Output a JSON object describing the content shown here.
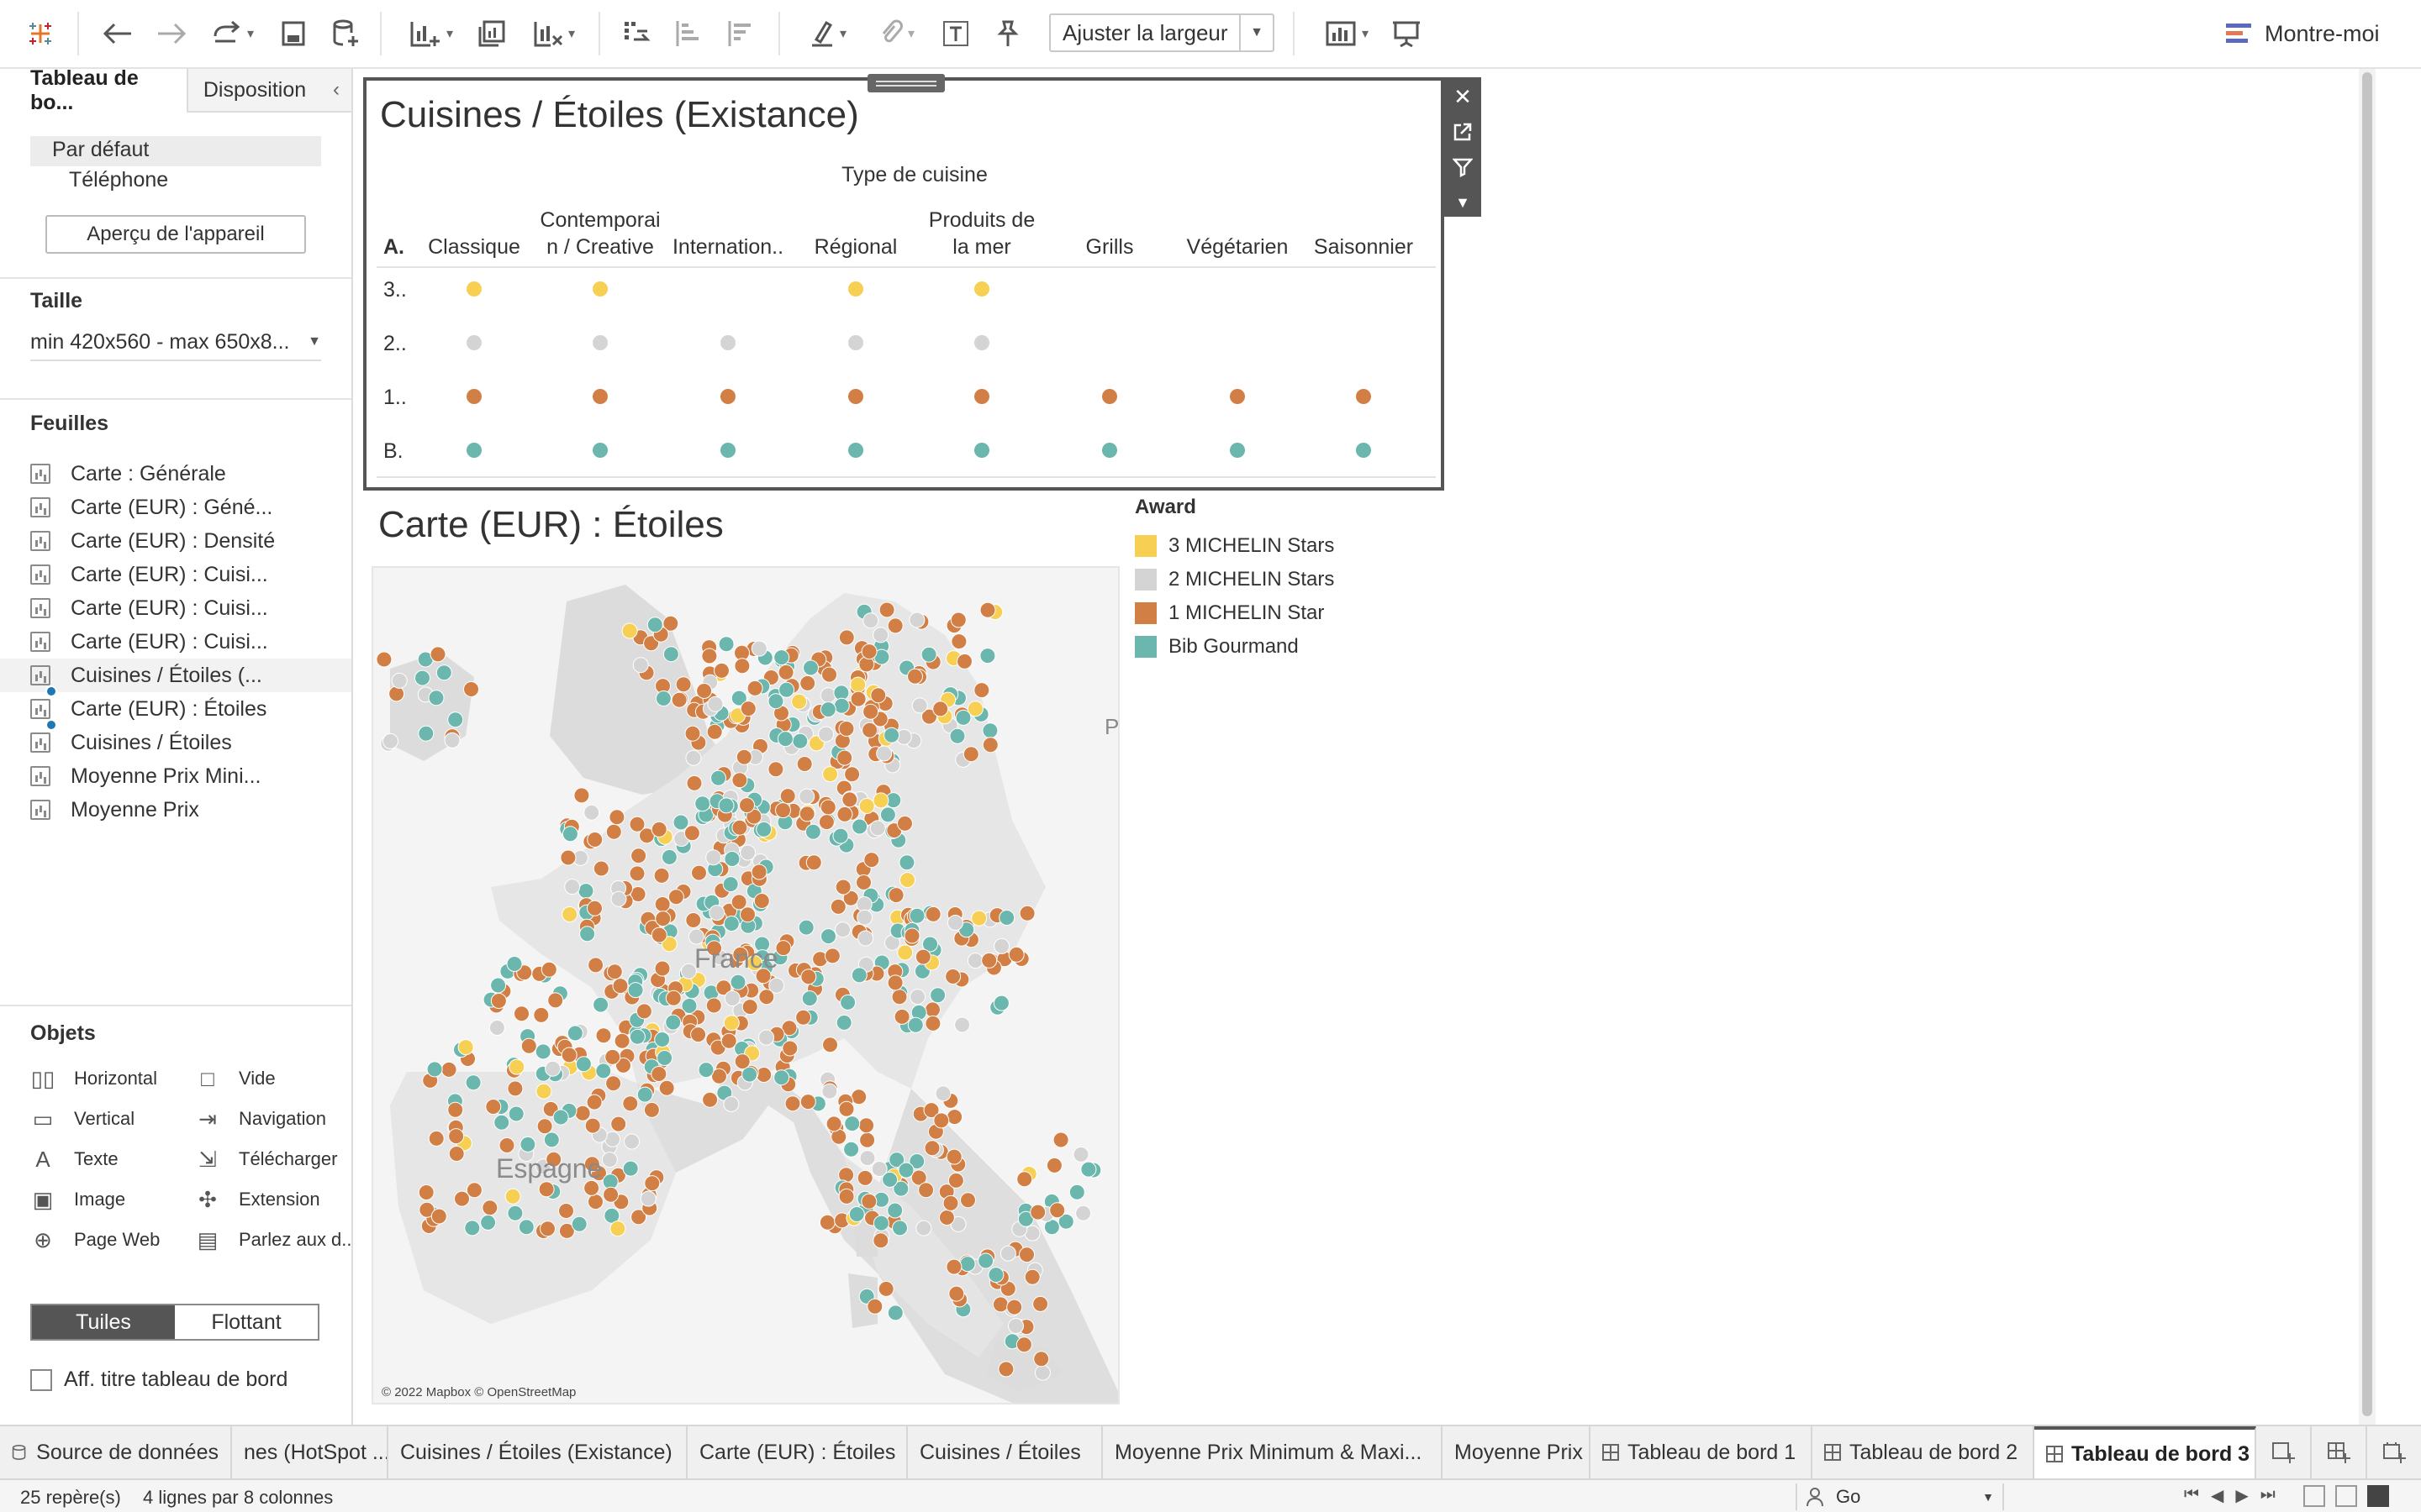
{
  "toolbar": {
    "fit_select": "Ajuster la largeur",
    "show_me": "Montre-moi"
  },
  "left_panel": {
    "tabs": {
      "dashboard": "Tableau de bo...",
      "layout": "Disposition"
    },
    "device": {
      "default": "Par défaut",
      "phone": "Téléphone",
      "preview_button": "Aperçu de l'appareil"
    },
    "size": {
      "heading": "Taille",
      "value": "min 420x560 - max 650x8..."
    },
    "sheets": {
      "heading": "Feuilles",
      "items": [
        "Carte : Générale",
        "Carte (EUR) : Géné...",
        "Carte (EUR) : Densité",
        "Carte (EUR) : Cuisi...",
        "Carte (EUR) : Cuisi...",
        "Carte (EUR) : Cuisi...",
        "Cuisines / Étoiles (...",
        "Carte (EUR) : Étoiles",
        "Cuisines / Étoiles",
        "Moyenne Prix Mini...",
        "Moyenne Prix"
      ]
    },
    "objects": {
      "heading": "Objets",
      "items": [
        "Horizontal",
        "Vide",
        "Vertical",
        "Navigation",
        "Texte",
        "Télécharger",
        "Image",
        "Extension",
        "Page Web",
        "Parlez aux d..."
      ]
    },
    "mode": {
      "tiled": "Tuiles",
      "floating": "Flottant"
    },
    "show_title": "Aff. titre tableau de bord"
  },
  "table_sheet": {
    "title": "Cuisines / Étoiles (Existance)",
    "column_group": "Type de cuisine",
    "row_header": "A.",
    "columns": [
      [
        "Classique"
      ],
      [
        "Contemporai",
        "n / Creative"
      ],
      [
        "Internation.."
      ],
      [
        "Régional"
      ],
      [
        "Produits de",
        "la mer"
      ],
      [
        "Grills"
      ],
      [
        "Végétarien"
      ],
      [
        "Saisonnier"
      ]
    ],
    "rows": [
      {
        "label": "3..",
        "award": 0,
        "present": [
          1,
          1,
          0,
          1,
          1,
          0,
          0,
          0
        ]
      },
      {
        "label": "2..",
        "award": 1,
        "present": [
          1,
          1,
          1,
          1,
          1,
          0,
          0,
          0
        ]
      },
      {
        "label": "1..",
        "award": 2,
        "present": [
          1,
          1,
          1,
          1,
          1,
          1,
          1,
          1
        ]
      },
      {
        "label": "B.",
        "award": 3,
        "present": [
          1,
          1,
          1,
          1,
          1,
          1,
          1,
          1
        ]
      }
    ]
  },
  "map_sheet": {
    "title": "Carte (EUR) : Étoiles",
    "attribution": "© 2022 Mapbox © OpenStreetMap",
    "labels": {
      "france": "France",
      "spain": "Espagne",
      "p": "P"
    }
  },
  "legend": {
    "title": "Award",
    "items": [
      {
        "label": "3 MICHELIN Stars",
        "color": "#f6cf53"
      },
      {
        "label": "2 MICHELIN Stars",
        "color": "#d4d4d4"
      },
      {
        "label": "1 MICHELIN Star",
        "color": "#d27f45"
      },
      {
        "label": "Bib Gourmand",
        "color": "#6bb7ae"
      }
    ]
  },
  "sheet_tabs": [
    "Source de données",
    "nes (HotSpot ...",
    "Cuisines / Étoiles (Existance)",
    "Carte (EUR) : Étoiles",
    "Cuisines / Étoiles",
    "Moyenne Prix Minimum & Maxi...",
    "Moyenne Prix",
    "Tableau de bord 1",
    "Tableau de bord 2",
    "Tableau de bord 3"
  ],
  "status": {
    "marks": "25 repère(s)",
    "dims": "4 lignes par 8 colonnes",
    "user": "Go"
  }
}
